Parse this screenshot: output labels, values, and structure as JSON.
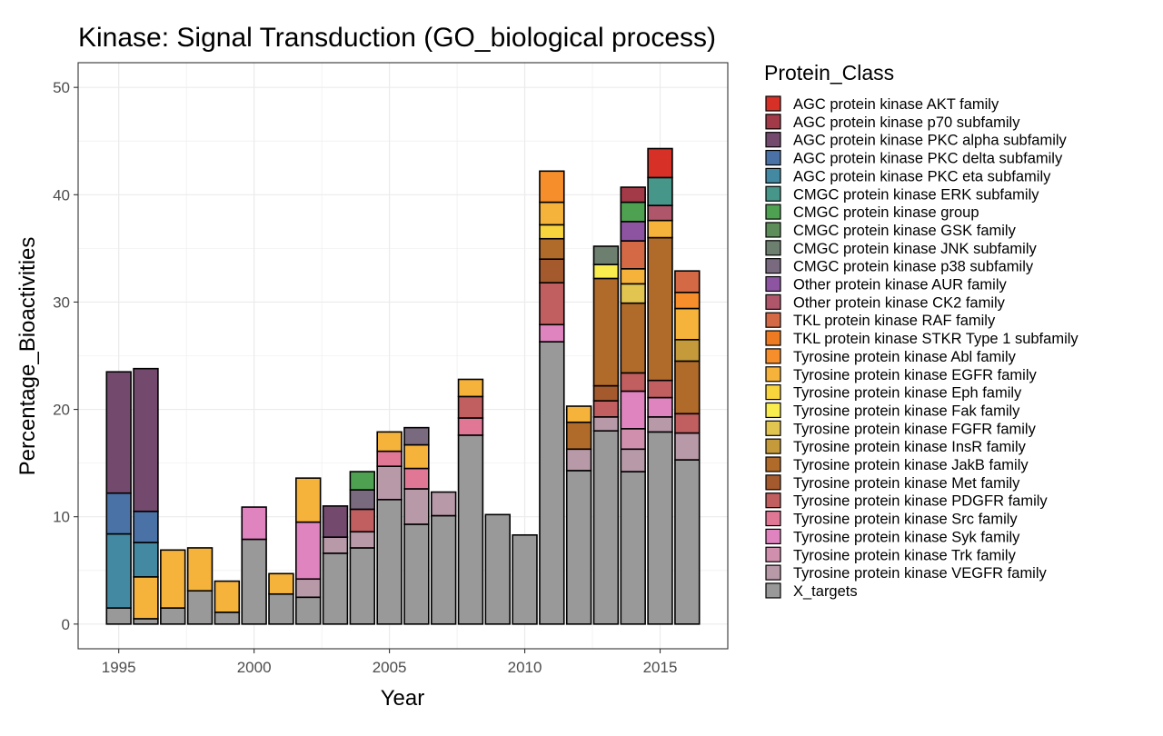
{
  "chart_data": {
    "type": "bar",
    "stacked": true,
    "title": "Kinase: Signal Transduction (GO_biological process)",
    "xlabel": "Year",
    "ylabel": "Percentage_Bioactivities",
    "xlim": [
      1993.5,
      2017.5
    ],
    "ylim": [
      -2.3,
      52.3
    ],
    "xticks": [
      1995,
      2000,
      2005,
      2010,
      2015
    ],
    "yticks": [
      0,
      10,
      20,
      30,
      40,
      50
    ],
    "grid": true,
    "legend_title": "Protein_Class",
    "legend_position": "right",
    "classes": [
      {
        "name": "AGC protein kinase AKT family",
        "color": "#d73027"
      },
      {
        "name": "AGC protein kinase p70 subfamily",
        "color": "#a33a48"
      },
      {
        "name": "AGC protein kinase PKC alpha subfamily",
        "color": "#734a6e"
      },
      {
        "name": "AGC protein kinase PKC delta subfamily",
        "color": "#4a72a6"
      },
      {
        "name": "AGC protein kinase PKC eta subfamily",
        "color": "#4289a1"
      },
      {
        "name": "CMGC protein kinase ERK subfamily",
        "color": "#47968a"
      },
      {
        "name": "CMGC protein kinase group",
        "color": "#4fa152"
      },
      {
        "name": "CMGC protein kinase GSK family",
        "color": "#5d8d59"
      },
      {
        "name": "CMGC protein kinase JNK subfamily",
        "color": "#6d7f6e"
      },
      {
        "name": "CMGC protein kinase p38 subfamily",
        "color": "#7a6a7f"
      },
      {
        "name": "Other protein kinase AUR family",
        "color": "#8c54a1"
      },
      {
        "name": "Other protein kinase CK2 family",
        "color": "#b0566a"
      },
      {
        "name": "TKL protein kinase RAF family",
        "color": "#d36a45"
      },
      {
        "name": "TKL protein kinase STKR Type 1 subfamily",
        "color": "#ee7b22"
      },
      {
        "name": "Tyrosine protein kinase Abl family",
        "color": "#f68e2c"
      },
      {
        "name": "Tyrosine protein kinase EGFR family",
        "color": "#f6b33c"
      },
      {
        "name": "Tyrosine protein kinase Eph family",
        "color": "#f8d43d"
      },
      {
        "name": "Tyrosine protein kinase Fak family",
        "color": "#f8ec4e"
      },
      {
        "name": "Tyrosine protein kinase FGFR family",
        "color": "#e2c450"
      },
      {
        "name": "Tyrosine protein kinase InsR family",
        "color": "#c59a3b"
      },
      {
        "name": "Tyrosine protein kinase JakB family",
        "color": "#b06a2a"
      },
      {
        "name": "Tyrosine protein kinase Met family",
        "color": "#a55a2e"
      },
      {
        "name": "Tyrosine protein kinase PDGFR family",
        "color": "#c05e60"
      },
      {
        "name": "Tyrosine protein kinase Src family",
        "color": "#e07795"
      },
      {
        "name": "Tyrosine protein kinase Syk family",
        "color": "#e084bf"
      },
      {
        "name": "Tyrosine protein kinase Trk family",
        "color": "#d090ad"
      },
      {
        "name": "Tyrosine protein kinase VEGFR family",
        "color": "#b799a8"
      },
      {
        "name": "X_targets",
        "color": "#999999"
      }
    ],
    "bars": [
      {
        "x": 1995,
        "segments": [
          [
            "X_targets",
            1.5
          ],
          [
            "AGC protein kinase PKC eta subfamily",
            6.9
          ],
          [
            "AGC protein kinase PKC delta subfamily",
            3.8
          ],
          [
            "AGC protein kinase PKC alpha subfamily",
            11.3
          ]
        ]
      },
      {
        "x": 1996,
        "segments": [
          [
            "X_targets",
            0.5
          ],
          [
            "Tyrosine protein kinase EGFR family",
            3.9
          ],
          [
            "AGC protein kinase PKC eta subfamily",
            3.2
          ],
          [
            "AGC protein kinase PKC delta subfamily",
            2.9
          ],
          [
            "AGC protein kinase PKC alpha subfamily",
            13.3
          ]
        ]
      },
      {
        "x": 1997,
        "segments": [
          [
            "X_targets",
            1.5
          ],
          [
            "Tyrosine protein kinase EGFR family",
            5.4
          ]
        ]
      },
      {
        "x": 1998,
        "segments": [
          [
            "X_targets",
            3.1
          ],
          [
            "Tyrosine protein kinase EGFR family",
            4.0
          ]
        ]
      },
      {
        "x": 1999,
        "segments": [
          [
            "X_targets",
            1.1
          ],
          [
            "Tyrosine protein kinase EGFR family",
            2.9
          ]
        ]
      },
      {
        "x": 2000,
        "segments": [
          [
            "X_targets",
            7.9
          ],
          [
            "Tyrosine protein kinase Syk family",
            3.0
          ]
        ]
      },
      {
        "x": 2001,
        "segments": [
          [
            "X_targets",
            2.8
          ],
          [
            "Tyrosine protein kinase EGFR family",
            1.9
          ]
        ]
      },
      {
        "x": 2002,
        "segments": [
          [
            "X_targets",
            2.5
          ],
          [
            "Tyrosine protein kinase VEGFR family",
            1.7
          ],
          [
            "Tyrosine protein kinase Syk family",
            5.3
          ],
          [
            "Tyrosine protein kinase EGFR family",
            4.1
          ]
        ]
      },
      {
        "x": 2003,
        "segments": [
          [
            "X_targets",
            6.6
          ],
          [
            "Tyrosine protein kinase VEGFR family",
            1.5
          ],
          [
            "AGC protein kinase PKC alpha subfamily",
            2.9
          ]
        ]
      },
      {
        "x": 2004,
        "segments": [
          [
            "X_targets",
            7.1
          ],
          [
            "Tyrosine protein kinase VEGFR family",
            1.5
          ],
          [
            "Tyrosine protein kinase PDGFR family",
            2.1
          ],
          [
            "CMGC protein kinase p38 subfamily",
            1.8
          ],
          [
            "CMGC protein kinase group",
            1.7
          ]
        ]
      },
      {
        "x": 2005,
        "segments": [
          [
            "X_targets",
            11.6
          ],
          [
            "Tyrosine protein kinase VEGFR family",
            3.1
          ],
          [
            "Tyrosine protein kinase Src family",
            1.4
          ],
          [
            "Tyrosine protein kinase EGFR family",
            1.8
          ]
        ]
      },
      {
        "x": 2006,
        "segments": [
          [
            "X_targets",
            9.3
          ],
          [
            "Tyrosine protein kinase VEGFR family",
            3.3
          ],
          [
            "Tyrosine protein kinase Src family",
            1.9
          ],
          [
            "Tyrosine protein kinase EGFR family",
            2.2
          ],
          [
            "CMGC protein kinase p38 subfamily",
            1.6
          ]
        ]
      },
      {
        "x": 2007,
        "segments": [
          [
            "X_targets",
            10.1
          ],
          [
            "Tyrosine protein kinase VEGFR family",
            2.2
          ]
        ]
      },
      {
        "x": 2008,
        "segments": [
          [
            "X_targets",
            17.6
          ],
          [
            "Tyrosine protein kinase Src family",
            1.6
          ],
          [
            "Tyrosine protein kinase PDGFR family",
            2.0
          ],
          [
            "Tyrosine protein kinase EGFR family",
            1.6
          ]
        ]
      },
      {
        "x": 2009,
        "segments": [
          [
            "X_targets",
            10.2
          ]
        ]
      },
      {
        "x": 2010,
        "segments": [
          [
            "X_targets",
            8.3
          ]
        ]
      },
      {
        "x": 2011,
        "segments": [
          [
            "X_targets",
            26.3
          ],
          [
            "Tyrosine protein kinase Syk family",
            1.6
          ],
          [
            "Tyrosine protein kinase PDGFR family",
            3.9
          ],
          [
            "Tyrosine protein kinase Met family",
            2.2
          ],
          [
            "Tyrosine protein kinase JakB family",
            1.9
          ],
          [
            "Tyrosine protein kinase Eph family",
            1.3
          ],
          [
            "Tyrosine protein kinase EGFR family",
            2.1
          ],
          [
            "Tyrosine protein kinase Abl family",
            2.9
          ]
        ]
      },
      {
        "x": 2012,
        "segments": [
          [
            "X_targets",
            14.3
          ],
          [
            "Tyrosine protein kinase VEGFR family",
            2.0
          ],
          [
            "Tyrosine protein kinase JakB family",
            2.5
          ],
          [
            "Tyrosine protein kinase EGFR family",
            1.5
          ]
        ]
      },
      {
        "x": 2013,
        "segments": [
          [
            "X_targets",
            18.0
          ],
          [
            "Tyrosine protein kinase VEGFR family",
            1.3
          ],
          [
            "Tyrosine protein kinase PDGFR family",
            1.5
          ],
          [
            "Tyrosine protein kinase Met family",
            1.4
          ],
          [
            "Tyrosine protein kinase JakB family",
            10.0
          ],
          [
            "Tyrosine protein kinase Fak family",
            1.3
          ],
          [
            "CMGC protein kinase JNK subfamily",
            1.7
          ]
        ]
      },
      {
        "x": 2014,
        "segments": [
          [
            "X_targets",
            14.2
          ],
          [
            "Tyrosine protein kinase VEGFR family",
            2.1
          ],
          [
            "Tyrosine protein kinase Trk family",
            1.9
          ],
          [
            "Tyrosine protein kinase Syk family",
            3.5
          ],
          [
            "Tyrosine protein kinase PDGFR family",
            1.7
          ],
          [
            "Tyrosine protein kinase JakB family",
            6.5
          ],
          [
            "Tyrosine protein kinase FGFR family",
            1.8
          ],
          [
            "Tyrosine protein kinase EGFR family",
            1.4
          ],
          [
            "TKL protein kinase RAF family",
            2.6
          ],
          [
            "Other protein kinase AUR family",
            1.8
          ],
          [
            "CMGC protein kinase group",
            1.8
          ],
          [
            "AGC protein kinase p70 subfamily",
            1.4
          ]
        ]
      },
      {
        "x": 2015,
        "segments": [
          [
            "X_targets",
            17.9
          ],
          [
            "Tyrosine protein kinase VEGFR family",
            1.4
          ],
          [
            "Tyrosine protein kinase Syk family",
            1.8
          ],
          [
            "Tyrosine protein kinase PDGFR family",
            1.6
          ],
          [
            "Tyrosine protein kinase JakB family",
            13.3
          ],
          [
            "Tyrosine protein kinase EGFR family",
            1.6
          ],
          [
            "Other protein kinase CK2 family",
            1.4
          ],
          [
            "CMGC protein kinase ERK subfamily",
            2.6
          ],
          [
            "AGC protein kinase AKT family",
            2.7
          ]
        ]
      },
      {
        "x": 2016,
        "segments": [
          [
            "X_targets",
            15.3
          ],
          [
            "Tyrosine protein kinase VEGFR family",
            2.5
          ],
          [
            "Tyrosine protein kinase PDGFR family",
            1.8
          ],
          [
            "Tyrosine protein kinase JakB family",
            4.9
          ],
          [
            "Tyrosine protein kinase InsR family",
            2.0
          ],
          [
            "Tyrosine protein kinase EGFR family",
            2.9
          ],
          [
            "Tyrosine protein kinase Abl family",
            1.5
          ],
          [
            "TKL protein kinase RAF family",
            2.0
          ]
        ]
      }
    ]
  }
}
